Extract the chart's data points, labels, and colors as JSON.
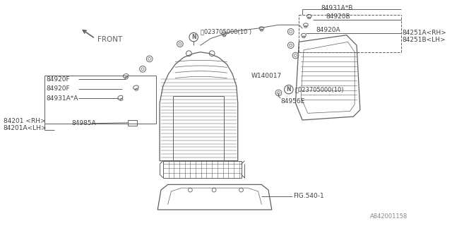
{
  "bg_color": "#ffffff",
  "line_color": "#606060",
  "text_color": "#404040",
  "watermark": "A842001158",
  "labels": {
    "front": "FRONT",
    "nut1": "ⓝ023705000(10 )",
    "nut2": "ⓝ023705000(10)",
    "84931AB": "84931A*B",
    "84920B": "84920B",
    "84920A": "84920A",
    "84251A": "84251A<RH>",
    "84251B": "84251B<LH>",
    "84920F1": "84920F",
    "84920F2": "84920F",
    "84931AA": "84931A*A",
    "84201": "84201 <RH>",
    "84201A": "84201A<LH>",
    "84985A": "84985A",
    "W140017": "W140017",
    "84956E": "84956E",
    "FIG5401": "FIG.540-1"
  }
}
